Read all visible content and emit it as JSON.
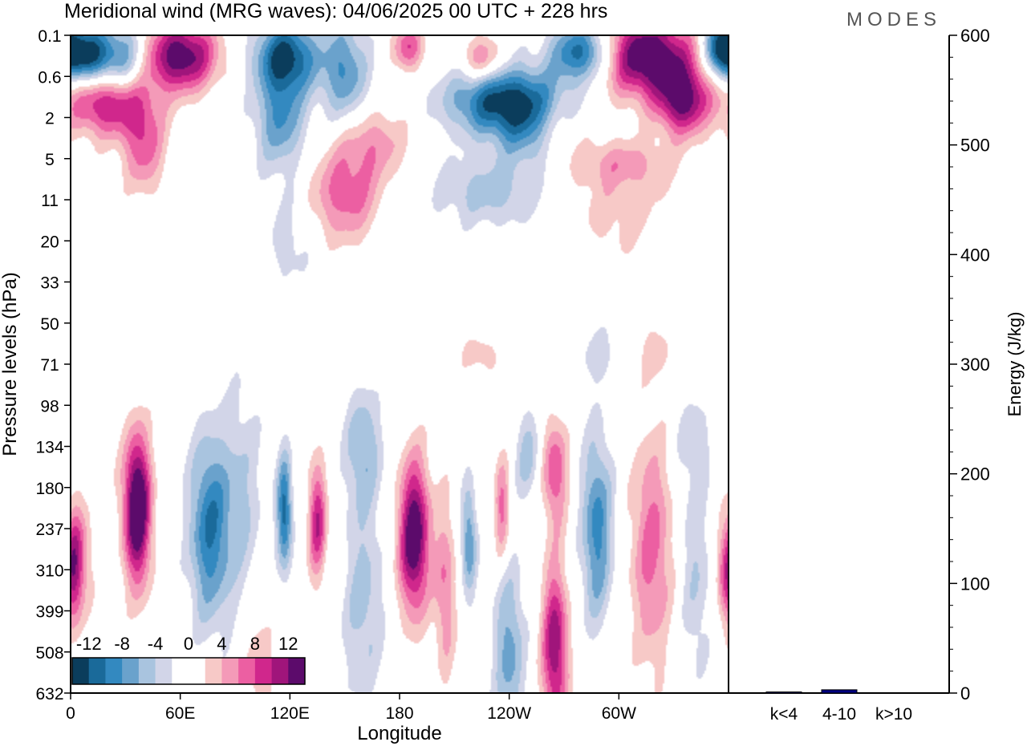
{
  "title": "Meridional wind (MRG waves):  04/06/2025  00 UTC  + 228 hrs",
  "logo": "MODES",
  "chart_data": [
    {
      "type": "heatmap",
      "xlabel": "Longitude",
      "ylabel": "Pressure levels (hPa)",
      "x_ticks": [
        "0",
        "60E",
        "120E",
        "180",
        "120W",
        "60W"
      ],
      "x_tick_degrees": [
        0,
        60,
        120,
        180,
        240,
        300
      ],
      "x_range_degrees": [
        0,
        360
      ],
      "y_ticks": [
        "0.1",
        "0.6",
        "2",
        "5",
        "11",
        "20",
        "33",
        "50",
        "71",
        "98",
        "134",
        "180",
        "237",
        "310",
        "399",
        "508",
        "632"
      ],
      "y_scale": "categorical-levels (top=0.1 hPa, bottom=632 hPa)",
      "colorbar": {
        "labels": [
          "-12",
          "-8",
          "-4",
          "0",
          "4",
          "8",
          "12"
        ],
        "levels": [
          -14,
          -12,
          -10,
          -8,
          -6,
          -4,
          -2,
          0,
          2,
          4,
          6,
          8,
          10,
          12,
          14
        ],
        "colors": [
          "#0b3d5c",
          "#1a6a9a",
          "#3389c0",
          "#6aa2cc",
          "#a9c4df",
          "#d2d5e8",
          "#ffffff",
          "#ffffff",
          "#f7c9c7",
          "#f49ab8",
          "#ec5fa2",
          "#d0278c",
          "#a0157b",
          "#5c0b6b"
        ]
      },
      "features": [
        {
          "lon": 8,
          "level": 0.5,
          "amp": -14,
          "wx": 9,
          "wy": 0.5
        },
        {
          "lon": 28,
          "level": 0.6,
          "amp": -9,
          "wx": 10,
          "wy": 0.6
        },
        {
          "lon": 60,
          "level": 0.5,
          "amp": 14,
          "wx": 14,
          "wy": 0.6
        },
        {
          "lon": 118,
          "level": 0.5,
          "amp": -12,
          "wx": 12,
          "wy": 0.6
        },
        {
          "lon": 150,
          "level": 0.9,
          "amp": -8,
          "wx": 9,
          "wy": 0.9
        },
        {
          "lon": 185,
          "level": 0.3,
          "amp": 8,
          "wx": 6,
          "wy": 0.4
        },
        {
          "lon": 238,
          "level": 1.6,
          "amp": -13,
          "wx": 22,
          "wy": 0.6
        },
        {
          "lon": 225,
          "level": 0.6,
          "amp": 7,
          "wx": 8,
          "wy": 0.4
        },
        {
          "lon": 280,
          "level": 0.4,
          "amp": -12,
          "wx": 12,
          "wy": 0.5
        },
        {
          "lon": 315,
          "level": 0.5,
          "amp": 15,
          "wx": 18,
          "wy": 0.7
        },
        {
          "lon": 335,
          "level": 1.6,
          "amp": 12,
          "wx": 10,
          "wy": 0.6
        },
        {
          "lon": 355,
          "level": 0.3,
          "amp": -12,
          "wx": 6,
          "wy": 0.5
        },
        {
          "lon": 20,
          "level": 1.6,
          "amp": 11,
          "wx": 16,
          "wy": 0.6
        },
        {
          "lon": 115,
          "level": 2.0,
          "amp": -8,
          "wx": 10,
          "wy": 0.9
        },
        {
          "lon": 40,
          "level": 2.7,
          "amp": 7,
          "wx": 8,
          "wy": 0.8
        },
        {
          "lon": 165,
          "level": 2.6,
          "amp": 5,
          "wx": 14,
          "wy": 0.6
        },
        {
          "lon": 250,
          "level": 2.4,
          "amp": -5,
          "wx": 12,
          "wy": 0.6
        },
        {
          "lon": 265,
          "level": 2.2,
          "amp": 3,
          "wx": 10,
          "wy": 0.5
        },
        {
          "lon": 300,
          "level": 3.1,
          "amp": 4,
          "wx": 20,
          "wy": 0.4
        },
        {
          "lon": 150,
          "level": 3.9,
          "amp": 7,
          "wx": 14,
          "wy": 0.8
        },
        {
          "lon": 230,
          "level": 3.8,
          "amp": -5,
          "wx": 22,
          "wy": 0.6
        },
        {
          "lon": 300,
          "level": 4.2,
          "amp": 3,
          "wx": 22,
          "wy": 0.9
        },
        {
          "lon": 120,
          "level": 5.0,
          "amp": -3,
          "wx": 10,
          "wy": 0.9
        },
        {
          "lon": 35,
          "level": 11.3,
          "amp": 5,
          "wx": 6,
          "wy": 1.2
        },
        {
          "lon": 5,
          "level": 12.8,
          "amp": 6,
          "wx": 5,
          "wy": 1.0
        },
        {
          "lon": 37,
          "level": 11.6,
          "amp": 12,
          "wx": 5,
          "wy": 1.3
        },
        {
          "lon": 76,
          "level": 12.0,
          "amp": -10,
          "wx": 8,
          "wy": 1.6
        },
        {
          "lon": 94,
          "level": 11.3,
          "amp": -4,
          "wx": 8,
          "wy": 2.0
        },
        {
          "lon": 117,
          "level": 11.6,
          "amp": -11,
          "wx": 3,
          "wy": 1.0
        },
        {
          "lon": 135,
          "level": 11.8,
          "amp": 10,
          "wx": 3.5,
          "wy": 1.0
        },
        {
          "lon": 160,
          "level": 10.0,
          "amp": -6,
          "wx": 7,
          "wy": 1.0
        },
        {
          "lon": 160,
          "level": 13.8,
          "amp": -5,
          "wx": 8,
          "wy": 1.8
        },
        {
          "lon": 188,
          "level": 12.2,
          "amp": 15,
          "wx": 6,
          "wy": 1.3
        },
        {
          "lon": 205,
          "level": 13.5,
          "amp": 6,
          "wx": 4,
          "wy": 1.5
        },
        {
          "lon": 218,
          "level": 12.3,
          "amp": -8,
          "wx": 3,
          "wy": 1.0
        },
        {
          "lon": 236,
          "level": 11.5,
          "amp": 7,
          "wx": 3,
          "wy": 0.9
        },
        {
          "lon": 250,
          "level": 10.2,
          "amp": -5,
          "wx": 5,
          "wy": 0.8
        },
        {
          "lon": 265,
          "level": 10.6,
          "amp": 8,
          "wx": 5,
          "wy": 0.9
        },
        {
          "lon": 265,
          "level": 14.9,
          "amp": 12,
          "wx": 5,
          "wy": 1.4
        },
        {
          "lon": 240,
          "level": 15.0,
          "amp": -7,
          "wx": 6,
          "wy": 1.5
        },
        {
          "lon": 288,
          "level": 12.0,
          "amp": -9,
          "wx": 6,
          "wy": 1.6
        },
        {
          "lon": 318,
          "level": 12.5,
          "amp": 7,
          "wx": 8,
          "wy": 2.0
        },
        {
          "lon": 342,
          "level": 13.0,
          "amp": -4,
          "wx": 6,
          "wy": 2.0
        },
        {
          "lon": 340,
          "level": 9.8,
          "amp": -3,
          "wx": 7,
          "wy": 0.7
        },
        {
          "lon": 357,
          "level": 13.0,
          "amp": 5,
          "wx": 3,
          "wy": 0.9
        },
        {
          "lon": 2,
          "level": 13.0,
          "amp": 6,
          "wx": 3,
          "wy": 1.0
        },
        {
          "lon": 103,
          "level": 15.3,
          "amp": 4,
          "wx": 6,
          "wy": 0.9
        },
        {
          "lon": 290,
          "level": 7.8,
          "amp": -3,
          "wx": 8,
          "wy": 0.5
        },
        {
          "lon": 320,
          "level": 7.7,
          "amp": 3,
          "wx": 6,
          "wy": 0.5
        },
        {
          "lon": 225,
          "level": 7.8,
          "amp": 3,
          "wx": 8,
          "wy": 0.4
        }
      ]
    },
    {
      "type": "bar",
      "ylabel": "Energy (J/kg)",
      "categories": [
        "k<4",
        "4-10",
        "k>10"
      ],
      "values": [
        1,
        3,
        0
      ],
      "bar_color": "#000080",
      "ylim": [
        0,
        600
      ],
      "y_ticks": [
        0,
        100,
        200,
        300,
        400,
        500,
        600
      ],
      "y_minor_step": 20
    }
  ]
}
